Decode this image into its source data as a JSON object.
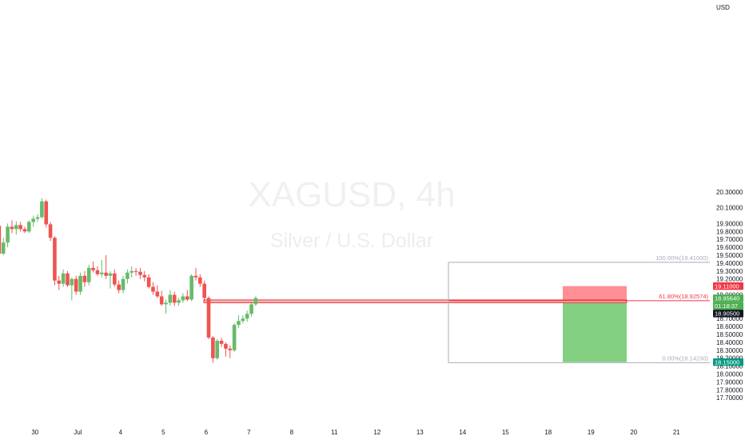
{
  "chart_data": {
    "type": "candlestick",
    "symbol_watermark": "XAGUSD, 4h",
    "name_watermark": "Silver / U.S. Dollar",
    "currency": "USD",
    "ylim": [
      17.7,
      20.35
    ],
    "y_ticks": [
      "20.30000",
      "20.10000",
      "19.90000",
      "19.80000",
      "19.70000",
      "19.60000",
      "19.50000",
      "19.40000",
      "19.30000",
      "19.20000",
      "19.00000",
      "18.80000",
      "18.70000",
      "18.60000",
      "18.50000",
      "18.40000",
      "18.30000",
      "18.20000",
      "18.10000",
      "18.00000",
      "17.90000",
      "17.80000",
      "17.70000"
    ],
    "x_ticks": [
      {
        "label": "30",
        "bar": -10.5
      },
      {
        "label": "Jul",
        "bar": -0.5
      },
      {
        "label": "4",
        "bar": 9.5
      },
      {
        "label": "5",
        "bar": 19.5
      },
      {
        "label": "6",
        "bar": 29.5
      },
      {
        "label": "7",
        "bar": 39.5
      },
      {
        "label": "8",
        "bar": 49.5
      },
      {
        "label": "11",
        "bar": 59.5
      },
      {
        "label": "12",
        "bar": 69.5
      },
      {
        "label": "13",
        "bar": 79.5
      },
      {
        "label": "14",
        "bar": 89.5
      },
      {
        "label": "15",
        "bar": 99.5
      },
      {
        "label": "18",
        "bar": 109.5
      },
      {
        "label": "19",
        "bar": 119.5
      },
      {
        "label": "20",
        "bar": 129.5
      },
      {
        "label": "21",
        "bar": 139.5
      }
    ],
    "candles": [
      [
        20.38,
        20.45,
        20.28,
        20.34
      ],
      [
        20.34,
        20.4,
        20.22,
        20.27
      ],
      [
        20.27,
        20.32,
        20.2,
        20.24
      ],
      [
        20.24,
        20.36,
        20.22,
        20.32
      ],
      [
        20.32,
        20.35,
        20.18,
        20.22
      ],
      [
        20.22,
        20.25,
        20.05,
        20.08
      ],
      [
        20.08,
        20.12,
        19.84,
        19.87
      ],
      [
        19.87,
        19.96,
        19.38,
        19.52
      ],
      [
        19.52,
        19.72,
        19.5,
        19.66
      ],
      [
        19.66,
        19.9,
        19.6,
        19.86
      ],
      [
        19.86,
        19.94,
        19.78,
        19.83
      ],
      [
        19.83,
        19.93,
        19.76,
        19.88
      ],
      [
        19.88,
        19.92,
        19.8,
        19.83
      ],
      [
        19.83,
        19.86,
        19.78,
        19.8
      ],
      [
        19.8,
        19.94,
        19.78,
        19.92
      ],
      [
        19.92,
        20.0,
        19.86,
        19.96
      ],
      [
        19.96,
        20.02,
        19.92,
        19.98
      ],
      [
        19.98,
        20.22,
        19.96,
        20.18
      ],
      [
        20.18,
        20.2,
        19.85,
        19.89
      ],
      [
        19.89,
        19.92,
        19.68,
        19.72
      ],
      [
        19.72,
        19.74,
        19.12,
        19.18
      ],
      [
        19.18,
        19.24,
        19.06,
        19.14
      ],
      [
        19.14,
        19.32,
        19.1,
        19.27
      ],
      [
        19.27,
        19.3,
        19.1,
        19.12
      ],
      [
        19.12,
        19.22,
        18.93,
        19.2
      ],
      [
        19.2,
        19.24,
        19.0,
        19.04
      ],
      [
        19.04,
        19.28,
        19.0,
        19.24
      ],
      [
        19.24,
        19.3,
        19.1,
        19.16
      ],
      [
        19.16,
        19.38,
        19.12,
        19.34
      ],
      [
        19.34,
        19.42,
        19.28,
        19.31
      ],
      [
        19.31,
        19.36,
        19.24,
        19.26
      ],
      [
        19.26,
        19.44,
        19.22,
        19.28
      ],
      [
        19.28,
        19.5,
        19.2,
        19.24
      ],
      [
        19.24,
        19.3,
        19.08,
        19.27
      ],
      [
        19.27,
        19.32,
        19.1,
        19.13
      ],
      [
        19.13,
        19.18,
        19.02,
        19.06
      ],
      [
        19.06,
        19.24,
        19.02,
        19.2
      ],
      [
        19.2,
        19.32,
        19.14,
        19.28
      ],
      [
        19.28,
        19.36,
        19.22,
        19.3
      ],
      [
        19.3,
        19.34,
        19.24,
        19.29
      ],
      [
        19.29,
        19.34,
        19.2,
        19.25
      ],
      [
        19.25,
        19.3,
        19.17,
        19.22
      ],
      [
        19.22,
        19.26,
        19.08,
        19.1
      ],
      [
        19.1,
        19.16,
        19.0,
        19.04
      ],
      [
        19.04,
        19.12,
        18.96,
        18.98
      ],
      [
        18.98,
        19.05,
        18.86,
        18.88
      ],
      [
        18.88,
        18.94,
        18.76,
        18.9
      ],
      [
        18.9,
        19.06,
        18.86,
        19.0
      ],
      [
        19.0,
        19.04,
        18.86,
        18.9
      ],
      [
        18.9,
        18.96,
        18.86,
        18.93
      ],
      [
        18.93,
        19.02,
        18.9,
        18.98
      ],
      [
        18.98,
        19.06,
        18.92,
        18.94
      ],
      [
        18.94,
        19.26,
        18.92,
        19.24
      ],
      [
        19.24,
        19.34,
        19.18,
        19.22
      ],
      [
        19.22,
        19.26,
        19.1,
        19.14
      ],
      [
        19.14,
        19.18,
        18.92,
        18.96
      ],
      [
        18.96,
        18.98,
        18.44,
        18.46
      ],
      [
        18.46,
        18.48,
        18.14,
        18.2
      ],
      [
        18.2,
        18.44,
        18.18,
        18.42
      ],
      [
        18.42,
        18.46,
        18.34,
        18.38
      ],
      [
        18.38,
        18.4,
        18.22,
        18.32
      ],
      [
        18.32,
        18.36,
        18.2,
        18.3
      ],
      [
        18.3,
        18.64,
        18.28,
        18.62
      ],
      [
        18.62,
        18.74,
        18.58,
        18.67
      ],
      [
        18.67,
        18.74,
        18.64,
        18.7
      ],
      [
        18.7,
        18.8,
        18.66,
        18.76
      ],
      [
        18.76,
        18.9,
        18.72,
        18.88
      ],
      [
        18.88,
        18.98,
        18.86,
        18.96
      ]
    ],
    "candle_positions": [
      -25.9,
      -24.9,
      -23.9,
      -22.9,
      -21.9,
      -20.9,
      -19.9,
      -18.9,
      -17.9,
      -16.9,
      -15.9,
      -14.9,
      -13.9,
      -12.9,
      -11.9,
      -10.9,
      -9.9,
      -8.9,
      -7.9,
      -6.9,
      -5.9,
      -4.9,
      -3.9,
      -2.9,
      -1.9,
      -0.9,
      0.1,
      1.1,
      2.1,
      3.1,
      4.1,
      5.1,
      6.1,
      7.1,
      8.1,
      9.1,
      10.1,
      11.1,
      12.1,
      13.1,
      14.1,
      15.1,
      16.1,
      17.1,
      18.1,
      19.1,
      20.1,
      21.1,
      22.1,
      23.1,
      24.1,
      25.1,
      26.1,
      27.1,
      28.1,
      29.1,
      30.1,
      31.1,
      32.1,
      33.1,
      34.1,
      35.1,
      36.1,
      37.1,
      38.1,
      39.1,
      40.1,
      41.1
    ],
    "support_zone": {
      "low": 18.9,
      "high": 18.935
    },
    "fibonacci": {
      "levels": [
        {
          "label": "100.00%(19.41000)",
          "price": 19.41
        },
        {
          "label": "61.80%(18.92574)",
          "price": 18.92574
        },
        {
          "label": "0.00%(18.14230)",
          "price": 18.1423
        }
      ]
    },
    "position": {
      "type": "short",
      "entry": 18.905,
      "stop": 19.11,
      "target": 18.15
    },
    "price_badges": [
      {
        "text": "19.11000",
        "price": 19.11,
        "color": "#f23645"
      },
      {
        "text": "18.95640",
        "price": 18.9564,
        "color": "#4caf50"
      },
      {
        "text": "01:18:37",
        "price": 18.9564,
        "color": "#4caf50"
      },
      {
        "text": "18.90500",
        "price": 18.905,
        "color": "#131722"
      },
      {
        "text": "18.15000",
        "price": 18.15,
        "color": "#089981"
      }
    ],
    "colors": {
      "up": "#66bb6a",
      "down": "#ef5350",
      "support_fill": "#f7b7bc",
      "support_stroke": "#e53935",
      "fib_line": "#a8aeb8",
      "fib_618": "#f23645",
      "stop_zone": "#ff7b82",
      "target_zone": "#7ccd7c"
    }
  }
}
